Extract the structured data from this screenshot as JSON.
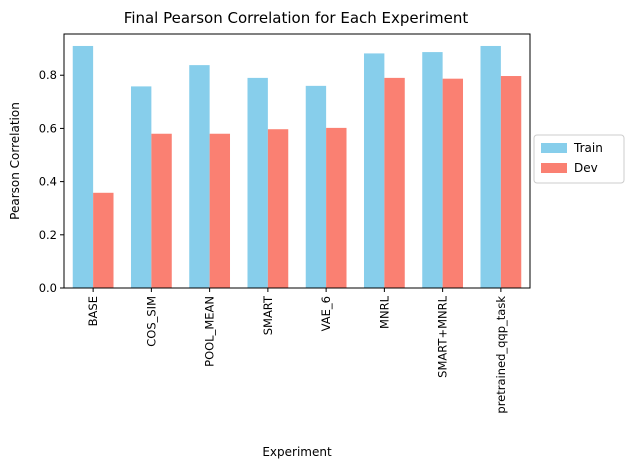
{
  "chart_data": {
    "type": "bar",
    "title": "Final Pearson Correlation for Each Experiment",
    "xlabel": "Experiment",
    "ylabel": "Pearson Correlation",
    "categories": [
      "BASE",
      "COS_SIM",
      "POOL_MEAN",
      "SMART",
      "VAE_6",
      "MNRL",
      "SMART+MNRL",
      "pretrained_qqp_task"
    ],
    "series": [
      {
        "name": "Train",
        "color": "#87CEEB",
        "values": [
          0.91,
          0.758,
          0.838,
          0.79,
          0.76,
          0.882,
          0.887,
          0.91
        ]
      },
      {
        "name": "Dev",
        "color": "#FA8072",
        "values": [
          0.358,
          0.58,
          0.58,
          0.597,
          0.602,
          0.79,
          0.787,
          0.797
        ]
      }
    ],
    "ylim": [
      0,
      0.955
    ],
    "yticks": [
      "0.0",
      "0.2",
      "0.4",
      "0.6",
      "0.8"
    ],
    "grid": false,
    "legend": "right"
  }
}
